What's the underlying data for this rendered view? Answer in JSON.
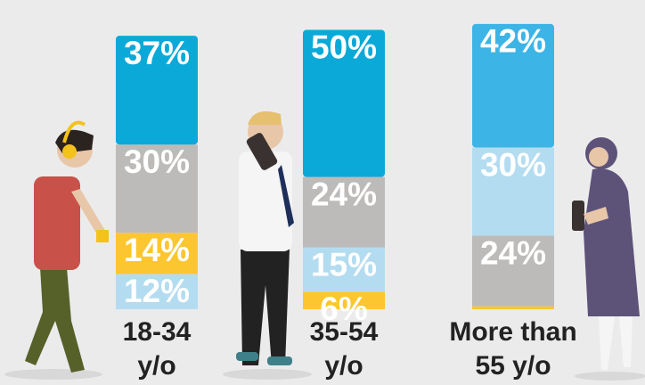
{
  "chart_data": {
    "type": "stacked-bar",
    "categories": [
      [
        "18-34",
        "y/o"
      ],
      [
        "35-54",
        "y/o"
      ],
      [
        "More than",
        "55 y/o"
      ]
    ],
    "stacks": [
      [
        {
          "color": "#b4dcf0",
          "value": 12,
          "value_label": "12%"
        },
        {
          "color": "#fcc630",
          "value": 14,
          "value_label": "14%"
        },
        {
          "color": "#bdbbb9",
          "value": 30,
          "value_label": "30%"
        },
        {
          "color": "#0aa9d8",
          "value": 37,
          "value_label": "37%"
        }
      ],
      [
        {
          "color": "#fcc630",
          "value": 6,
          "value_label": "6%"
        },
        {
          "color": "#b4dcf0",
          "value": 15,
          "value_label": "15%"
        },
        {
          "color": "#bdbbb9",
          "value": 24,
          "value_label": "24%"
        },
        {
          "color": "#0aa9d8",
          "value": 50,
          "value_label": "50%"
        }
      ],
      [
        {
          "color": "#fcc630",
          "value": 1,
          "value_label": null
        },
        {
          "color": "#bdbbb9",
          "value": 24,
          "value_label": "24%"
        },
        {
          "color": "#b4dcf0",
          "value": 30,
          "value_label": "30%"
        },
        {
          "color": "#3db4e6",
          "value": 42,
          "value_label": "42%"
        }
      ]
    ]
  }
}
